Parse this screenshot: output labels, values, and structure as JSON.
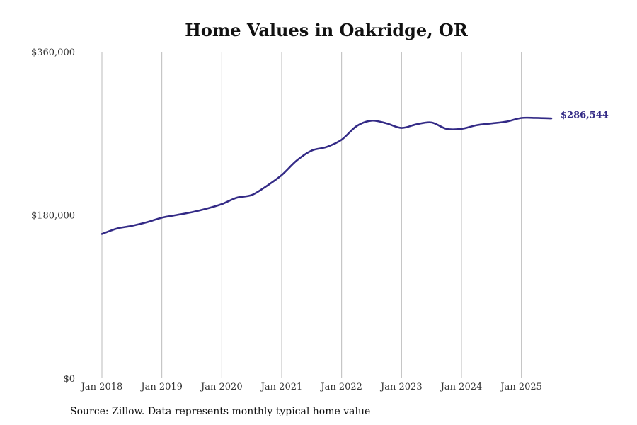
{
  "chart_data": {
    "type": "line",
    "title": "Home Values in Oakridge, OR",
    "source": "Source: Zillow. Data represents monthly typical home value",
    "ylim": [
      0,
      360000
    ],
    "yticks": [
      {
        "value": 0,
        "label": "$0"
      },
      {
        "value": 180000,
        "label": "$180,000"
      },
      {
        "value": 360000,
        "label": "$360,000"
      }
    ],
    "xticks": [
      {
        "date": "2018-01",
        "label": "Jan 2018"
      },
      {
        "date": "2019-01",
        "label": "Jan 2019"
      },
      {
        "date": "2020-01",
        "label": "Jan 2020"
      },
      {
        "date": "2021-01",
        "label": "Jan 2021"
      },
      {
        "date": "2022-01",
        "label": "Jan 2022"
      },
      {
        "date": "2023-01",
        "label": "Jan 2023"
      },
      {
        "date": "2024-01",
        "label": "Jan 2024"
      },
      {
        "date": "2025-01",
        "label": "Jan 2025"
      }
    ],
    "xlim": [
      "2018-01",
      "2025-07"
    ],
    "grid": {
      "vertical": true,
      "horizontal": false
    },
    "line_color": "#332a86",
    "end_label": "$286,544",
    "series": [
      {
        "points": [
          [
            "2018-01",
            159000
          ],
          [
            "2018-04",
            165000
          ],
          [
            "2018-07",
            168000
          ],
          [
            "2018-10",
            172000
          ],
          [
            "2019-01",
            177000
          ],
          [
            "2019-04",
            180000
          ],
          [
            "2019-07",
            183000
          ],
          [
            "2019-10",
            187000
          ],
          [
            "2020-01",
            192000
          ],
          [
            "2020-04",
            199000
          ],
          [
            "2020-07",
            202000
          ],
          [
            "2020-10",
            212000
          ],
          [
            "2021-01",
            224000
          ],
          [
            "2021-04",
            240000
          ],
          [
            "2021-07",
            251000
          ],
          [
            "2021-10",
            255000
          ],
          [
            "2022-01",
            263000
          ],
          [
            "2022-04",
            278000
          ],
          [
            "2022-07",
            284000
          ],
          [
            "2022-10",
            281000
          ],
          [
            "2023-01",
            276000
          ],
          [
            "2023-04",
            280000
          ],
          [
            "2023-07",
            282000
          ],
          [
            "2023-10",
            275000
          ],
          [
            "2024-01",
            275000
          ],
          [
            "2024-04",
            279000
          ],
          [
            "2024-07",
            281000
          ],
          [
            "2024-10",
            283000
          ],
          [
            "2025-01",
            287000
          ],
          [
            "2025-04",
            287000
          ],
          [
            "2025-07",
            286544
          ]
        ]
      }
    ]
  }
}
